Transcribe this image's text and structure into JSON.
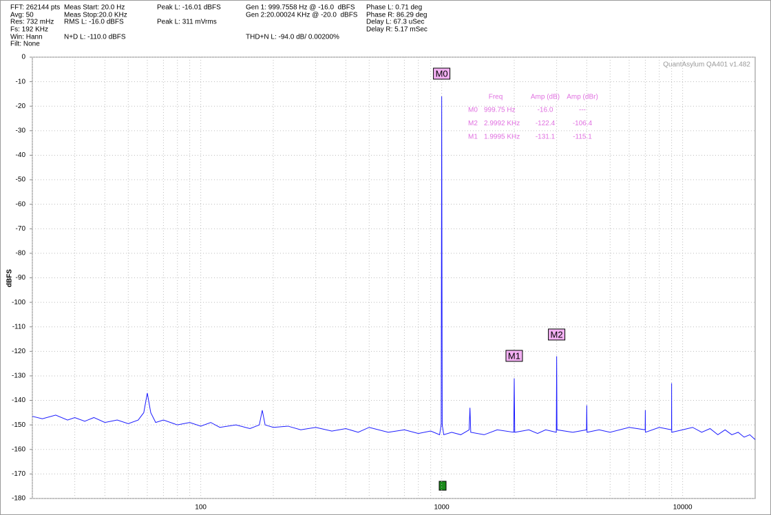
{
  "header": {
    "items": [
      "FFT: 262144 pts",
      "Avg: 50",
      "Res: 732 mHz",
      "Fs: 192 KHz",
      "Win: Hann",
      "Filt: None",
      "Meas Start: 20.0 Hz",
      "Meas Stop:20.0 KHz",
      "RMS L: -16.0 dBFS",
      "N+D L: -110.0 dBFS",
      "Peak L: -16.01 dBFS",
      "Peak L: 311 mVrms",
      "Gen 1: 999.7558 Hz @ -16.0  dBFS",
      "Gen 2:20.00024 KHz @ -20.0  dBFS",
      "THD+N L: -94.0 dB/ 0.00200%",
      "Phase L: 0.71 deg",
      "Phase R: 86.29 deg",
      "Delay L: 67.3 uSec",
      "Delay R: 5.17 mSec"
    ]
  },
  "chart_data": {
    "type": "line",
    "title": "QuantAsylum QA401 v1.482",
    "y_label": "dBFS",
    "log_x": true,
    "grid": true,
    "x": [
      20,
      22,
      25,
      28,
      30,
      33,
      36,
      40,
      45,
      50,
      55,
      58,
      60,
      62,
      65,
      70,
      80,
      90,
      100,
      110,
      120,
      140,
      160,
      175,
      180,
      185,
      200,
      230,
      260,
      300,
      350,
      400,
      450,
      500,
      600,
      700,
      800,
      900,
      980,
      995,
      1000,
      1005,
      1020,
      1100,
      1200,
      1300,
      1310,
      1320,
      1500,
      1700,
      1990,
      2000,
      2010,
      2300,
      2500,
      2700,
      2990,
      3000,
      3010,
      3500,
      3990,
      4000,
      4010,
      4500,
      5000,
      6000,
      6990,
      7000,
      7010,
      8000,
      8990,
      9000,
      9010,
      10000,
      11000,
      12000,
      13000,
      14000,
      15000,
      16000,
      17000,
      18000,
      19000,
      20000
    ],
    "series": [
      {
        "name": "L",
        "color": "#1a1aff",
        "values": [
          -146.5,
          -147.5,
          -146,
          -148,
          -147,
          -148.5,
          -147,
          -149,
          -148,
          -149.5,
          -148,
          -145,
          -137,
          -145,
          -149,
          -148,
          -150,
          -149,
          -150.5,
          -149,
          -151,
          -150,
          -151.5,
          -150,
          -144,
          -150,
          -151,
          -150.5,
          -152,
          -151,
          -152.5,
          -151.5,
          -153,
          -151,
          -153,
          -152,
          -153.5,
          -152.5,
          -154,
          -150,
          -16,
          -150,
          -154,
          -153,
          -154,
          -152,
          -143,
          -153,
          -154,
          -152,
          -153,
          -131,
          -153,
          -152,
          -153.5,
          -152,
          -153,
          -122,
          -152,
          -153,
          -152,
          -142,
          -153,
          -152,
          -153,
          -151,
          -152,
          -144,
          -153,
          -151,
          -152,
          -133,
          -153,
          -152,
          -151,
          -153,
          -151.5,
          -154,
          -152,
          -154,
          -153,
          -155,
          -154,
          -156
        ]
      }
    ],
    "xlim": [
      20,
      20000
    ],
    "ylim": [
      -180,
      0
    ],
    "xticks": [
      100,
      1000,
      10000
    ],
    "xminor": [
      20,
      30,
      40,
      50,
      60,
      70,
      80,
      90,
      200,
      300,
      400,
      500,
      600,
      700,
      800,
      900,
      2000,
      3000,
      4000,
      5000,
      6000,
      7000,
      8000,
      9000
    ],
    "yticks": [
      0,
      -10,
      -20,
      -30,
      -40,
      -50,
      -60,
      -70,
      -80,
      -90,
      -100,
      -110,
      -120,
      -130,
      -140,
      -150,
      -160,
      -170,
      -180
    ],
    "markers": [
      {
        "label": "M0",
        "x": 999.75,
        "y": -16.0
      },
      {
        "label": "M2",
        "x": 2999.2,
        "y": -122.4
      },
      {
        "label": "M1",
        "x": 1999.5,
        "y": -131.1
      }
    ],
    "marker_table": {
      "columns": [
        "Freq",
        "Amp (dB)",
        "Amp (dBr)"
      ],
      "rows": [
        [
          "M0",
          "999.75 Hz",
          "-16.0",
          "---"
        ],
        [
          "M2",
          "2.9992 KHz",
          "-122.4",
          "-106.4"
        ],
        [
          "M1",
          "1.9995 KHz",
          "-131.1",
          "-115.1"
        ]
      ]
    }
  }
}
